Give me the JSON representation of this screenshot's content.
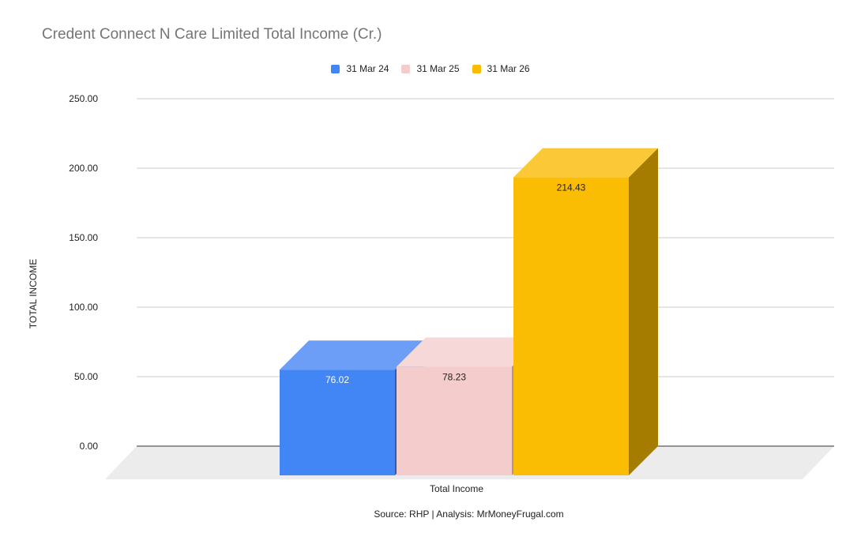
{
  "chart_data": {
    "type": "bar",
    "title": "Credent Connect N Care Limited Total Income (Cr.)",
    "xlabel": "",
    "ylabel": "TOTAL INCOME",
    "categories": [
      "Total Income"
    ],
    "series": [
      {
        "name": "31 Mar 24",
        "values": [
          76.02
        ],
        "label": "76.02",
        "color": "#4285f4",
        "top_color": "#6d9ef7",
        "side_color": "#2c5fb3",
        "label_color": "#ffffff"
      },
      {
        "name": "31 Mar 25",
        "values": [
          78.23
        ],
        "label": "78.23",
        "color": "#f4cccc",
        "top_color": "#f6d8d8",
        "side_color": "#b39393",
        "label_color": "#222222"
      },
      {
        "name": "31 Mar 26",
        "values": [
          214.43
        ],
        "label": "214.43",
        "color": "#fbbc04",
        "top_color": "#fbc937",
        "side_color": "#a67c00",
        "label_color": "#222222"
      }
    ],
    "ylim": [
      0,
      250
    ],
    "yticks": [
      "0.00",
      "50.00",
      "100.00",
      "150.00",
      "200.00",
      "250.00"
    ],
    "grid": true,
    "legend_position": "top",
    "style": "3d"
  },
  "footer": {
    "source": "Source: RHP | Analysis: MrMoneyFrugal.com"
  }
}
